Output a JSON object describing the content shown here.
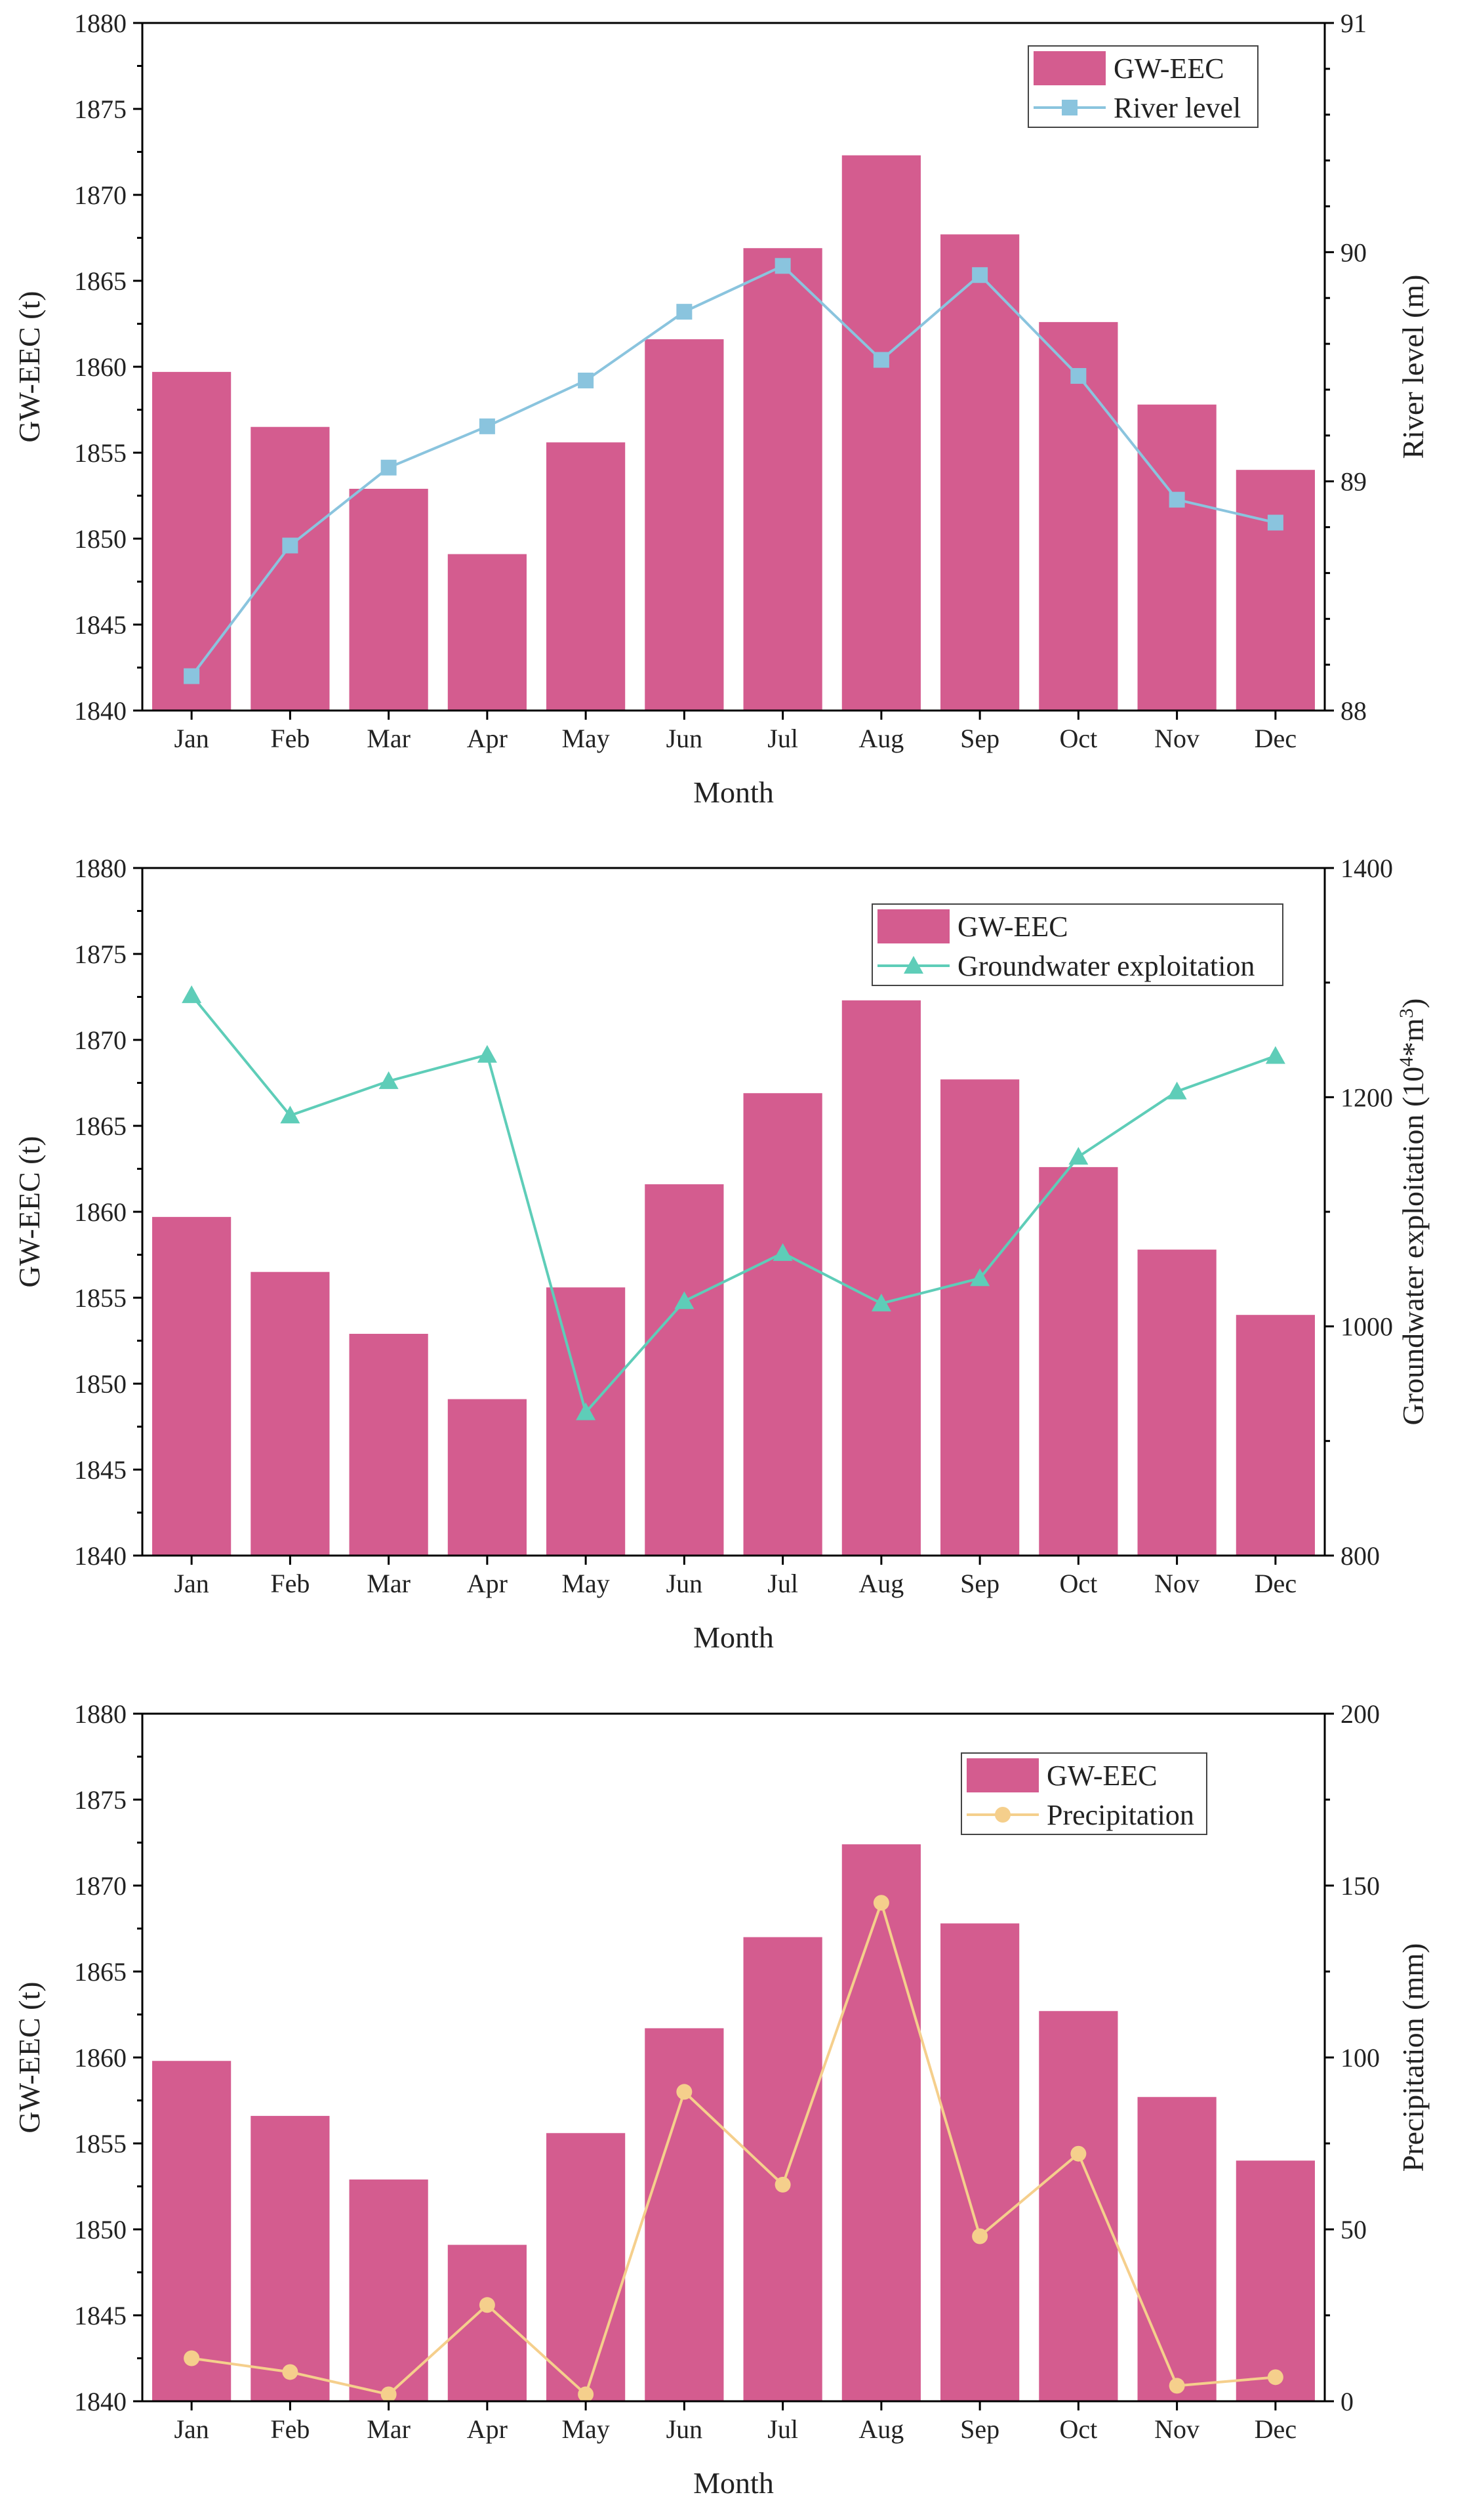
{
  "chart_data": [
    {
      "type": "bar",
      "title": "",
      "categories": [
        "Jan",
        "Feb",
        "Mar",
        "Apr",
        "May",
        "Jun",
        "Jul",
        "Aug",
        "Sep",
        "Oct",
        "Nov",
        "Dec"
      ],
      "xlabel": "Month",
      "ylabel": "GW-EEC (t)",
      "ylim": [
        1840,
        1880
      ],
      "yticks": [
        "1840",
        "1845",
        "1850",
        "1855",
        "1860",
        "1865",
        "1870",
        "1875",
        "1880"
      ],
      "y2label": "River level (m)",
      "y2label_parts": [],
      "y2lim": [
        88,
        91
      ],
      "y2ticks": [
        "88",
        "89",
        "90",
        "91"
      ],
      "legend_position": "top-right",
      "series": [
        {
          "name": "GW-EEC",
          "kind": "bar",
          "axis": "left",
          "color": "#d45c8f",
          "values": [
            1859.7,
            1856.5,
            1852.9,
            1849.1,
            1855.6,
            1861.6,
            1866.9,
            1872.3,
            1867.7,
            1862.6,
            1857.8,
            1854.0
          ]
        },
        {
          "name": "River level",
          "kind": "line",
          "axis": "right",
          "color": "#8ac4de",
          "marker": "square",
          "values": [
            88.15,
            88.72,
            89.06,
            89.24,
            89.44,
            89.74,
            89.94,
            89.53,
            89.9,
            89.46,
            88.92,
            88.82
          ]
        }
      ]
    },
    {
      "type": "bar",
      "title": "",
      "categories": [
        "Jan",
        "Feb",
        "Mar",
        "Apr",
        "May",
        "Jun",
        "Jul",
        "Aug",
        "Sep",
        "Oct",
        "Nov",
        "Dec"
      ],
      "xlabel": "Month",
      "ylabel": "GW-EEC (t)",
      "ylim": [
        1840,
        1880
      ],
      "yticks": [
        "1840",
        "1845",
        "1850",
        "1855",
        "1860",
        "1865",
        "1870",
        "1875",
        "1880"
      ],
      "y2label": "Groundwater exploitation (10^4*m^3)",
      "y2label_parts": [
        "Groundwater exploitation (10",
        "4",
        "*m",
        "3",
        ")"
      ],
      "y2lim": [
        800,
        1400
      ],
      "y2ticks": [
        "800",
        "1000",
        "1200",
        "1400"
      ],
      "legend_position": "top-right",
      "series": [
        {
          "name": "GW-EEC",
          "kind": "bar",
          "axis": "left",
          "color": "#d45c8f",
          "values": [
            1859.7,
            1856.5,
            1852.9,
            1849.1,
            1855.6,
            1861.6,
            1866.9,
            1872.3,
            1867.7,
            1862.6,
            1857.8,
            1854.0
          ]
        },
        {
          "name": "Groundwater exploitation",
          "kind": "line",
          "axis": "right",
          "color": "#5ecdb8",
          "marker": "triangle",
          "values": [
            1289,
            1184,
            1214,
            1237,
            925,
            1022,
            1064,
            1020,
            1042,
            1148,
            1205,
            1236
          ]
        }
      ]
    },
    {
      "type": "bar",
      "title": "",
      "categories": [
        "Jan",
        "Feb",
        "Mar",
        "Apr",
        "May",
        "Jun",
        "Jul",
        "Aug",
        "Sep",
        "Oct",
        "Nov",
        "Dec"
      ],
      "xlabel": "Month",
      "ylabel": "GW-EEC (t)",
      "ylim": [
        1840,
        1880
      ],
      "yticks": [
        "1840",
        "1845",
        "1850",
        "1855",
        "1860",
        "1865",
        "1870",
        "1875",
        "1880"
      ],
      "y2label": "Precipitation (mm)",
      "y2label_parts": [],
      "y2lim": [
        0,
        200
      ],
      "y2ticks": [
        "0",
        "50",
        "100",
        "150",
        "200"
      ],
      "legend_position": "top-right",
      "series": [
        {
          "name": "GW-EEC",
          "kind": "bar",
          "axis": "left",
          "color": "#d45c8f",
          "values": [
            1859.8,
            1856.6,
            1852.9,
            1849.1,
            1855.6,
            1861.7,
            1867.0,
            1872.4,
            1867.8,
            1862.7,
            1857.7,
            1854.0
          ]
        },
        {
          "name": "Precipitation",
          "kind": "line",
          "axis": "right",
          "color": "#f5cf8c",
          "marker": "circle",
          "values": [
            12.5,
            8.5,
            2.0,
            28.0,
            2.0,
            90.0,
            63.0,
            145.0,
            48.0,
            72.0,
            4.5,
            7.0
          ]
        }
      ]
    }
  ]
}
